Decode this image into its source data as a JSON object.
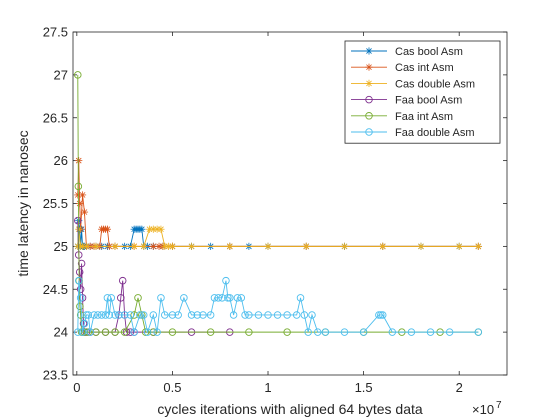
{
  "chart_data": {
    "type": "line",
    "title": "",
    "xlabel": "cycles iterations with aligned 64 bytes data",
    "ylabel": "time latency in nanosec",
    "x_exponent_label": "×10^7",
    "xlim": [
      -200000,
      22500000
    ],
    "ylim": [
      23.5,
      27.5
    ],
    "x_ticks": [
      0,
      5000000,
      10000000,
      15000000,
      20000000
    ],
    "x_tick_labels": [
      "0",
      "0.5",
      "1",
      "1.5",
      "2"
    ],
    "y_ticks": [
      23.5,
      24,
      24.5,
      25,
      25.5,
      26,
      26.5,
      27,
      27.5
    ],
    "y_tick_labels": [
      "23.5",
      "24",
      "24.5",
      "25",
      "25.5",
      "26",
      "26.5",
      "27",
      "27.5"
    ],
    "grid": false,
    "legend_position": "top-right",
    "series": [
      {
        "name": "Cas bool Asm",
        "color": "#0072BD",
        "marker": "asterisk",
        "x": [
          50000,
          100000,
          150000,
          200000,
          250000,
          300000,
          350000,
          400000,
          500000,
          700000,
          1000000,
          1300000,
          1600000,
          2000000,
          2500000,
          2800000,
          3000000,
          3100000,
          3200000,
          3300000,
          3400000,
          3500000,
          3700000,
          4000000,
          4500000,
          5000000,
          6000000,
          7000000,
          8000000,
          9000000,
          10000000,
          12000000,
          14000000,
          16000000,
          18000000,
          20000000,
          21000000
        ],
        "y": [
          25.0,
          25.3,
          25.2,
          25.0,
          25.2,
          25.0,
          25.0,
          25.0,
          25.0,
          25.0,
          25.0,
          25.0,
          25.0,
          25.0,
          25.0,
          25.0,
          25.2,
          25.2,
          25.2,
          25.2,
          25.2,
          25.0,
          25.0,
          25.0,
          25.0,
          25.0,
          25.0,
          25.0,
          25.0,
          25.0,
          25.0,
          25.0,
          25.0,
          25.0,
          25.0,
          25.0,
          25.0
        ]
      },
      {
        "name": "Cas int Asm",
        "color": "#D95319",
        "marker": "asterisk",
        "x": [
          50000,
          100000,
          150000,
          200000,
          300000,
          400000,
          500000,
          700000,
          900000,
          1200000,
          1300000,
          1400000,
          1500000,
          1600000,
          1700000,
          2000000,
          3000000,
          4000000,
          4300000,
          4500000,
          5000000,
          8000000,
          12000000,
          16000000,
          21000000
        ],
        "y": [
          25.6,
          26.0,
          25.5,
          25.2,
          25.6,
          25.4,
          25.0,
          25.0,
          25.0,
          25.0,
          25.2,
          25.2,
          25.2,
          25.2,
          25.0,
          25.0,
          25.0,
          25.0,
          25.0,
          25.0,
          25.0,
          25.0,
          25.0,
          25.0,
          25.0
        ]
      },
      {
        "name": "Cas double Asm",
        "color": "#EDB120",
        "marker": "asterisk",
        "x": [
          50000,
          100000,
          200000,
          300000,
          500000,
          1000000,
          2000000,
          3000000,
          3500000,
          3800000,
          4000000,
          4200000,
          4400000,
          4600000,
          4800000,
          5000000,
          6000000,
          8000000,
          10000000,
          12000000,
          14000000,
          16000000,
          18000000,
          20000000,
          21000000
        ],
        "y": [
          25.0,
          25.2,
          25.0,
          25.0,
          25.0,
          25.0,
          25.0,
          25.0,
          25.0,
          25.2,
          25.2,
          25.2,
          25.2,
          25.0,
          25.0,
          25.0,
          25.0,
          25.0,
          25.0,
          25.0,
          25.0,
          25.0,
          25.0,
          25.0,
          25.0
        ]
      },
      {
        "name": "Faa bool Asm",
        "color": "#7E2F8E",
        "marker": "circle",
        "x": [
          50000,
          100000,
          150000,
          200000,
          250000,
          300000,
          350000,
          400000,
          500000,
          700000,
          1000000,
          1500000,
          2000000,
          2200000,
          2300000,
          2400000,
          2500000,
          2600000,
          2800000,
          3000000,
          4000000,
          6000000,
          8000000
        ],
        "y": [
          25.3,
          24.9,
          24.7,
          24.5,
          24.8,
          24.4,
          24.1,
          24.0,
          24.0,
          24.0,
          24.0,
          24.0,
          24.0,
          24.2,
          24.4,
          24.6,
          24.2,
          24.0,
          24.0,
          24.0,
          24.0,
          24.0,
          24.0
        ]
      },
      {
        "name": "Faa int Asm",
        "color": "#77AC30",
        "marker": "circle",
        "x": [
          50000,
          80000,
          120000,
          160000,
          200000,
          250000,
          300000,
          400000,
          600000,
          1000000,
          1500000,
          2000000,
          2500000,
          3000000,
          3200000,
          3400000,
          3600000,
          4000000,
          5000000,
          7000000,
          9000000,
          11000000,
          13000000,
          15000000,
          17000000,
          19000000,
          21000000
        ],
        "y": [
          27.0,
          25.7,
          24.6,
          24.3,
          24.2,
          24.0,
          24.0,
          24.0,
          24.0,
          24.0,
          24.0,
          24.0,
          24.0,
          24.2,
          24.4,
          24.2,
          24.0,
          24.0,
          24.0,
          24.0,
          24.0,
          24.0,
          24.0,
          24.0,
          24.0,
          24.0,
          24.0
        ]
      },
      {
        "name": "Faa double Asm",
        "color": "#4DBEEE",
        "marker": "circle",
        "x": [
          50000,
          100000,
          200000,
          300000,
          400000,
          500000,
          600000,
          700000,
          900000,
          1100000,
          1300000,
          1500000,
          1600000,
          1700000,
          1800000,
          2000000,
          2200000,
          2500000,
          2800000,
          3000000,
          3300000,
          3500000,
          3700000,
          4000000,
          4200000,
          4400000,
          4600000,
          5000000,
          5300000,
          5600000,
          6000000,
          6300000,
          6600000,
          7000000,
          7200000,
          7400000,
          7600000,
          7800000,
          7900000,
          8000000,
          8200000,
          8400000,
          8600000,
          8800000,
          9000000,
          9500000,
          10000000,
          10500000,
          11000000,
          11500000,
          11700000,
          11900000,
          12100000,
          12300000,
          12600000,
          13000000,
          14000000,
          15000000,
          15800000,
          15900000,
          16000000,
          16500000,
          17500000,
          18500000,
          19500000,
          21000000
        ],
        "y": [
          24.0,
          24.6,
          24.4,
          24.0,
          24.1,
          24.2,
          24.2,
          24.0,
          24.2,
          24.2,
          24.2,
          24.2,
          24.4,
          24.2,
          24.4,
          24.2,
          24.2,
          24.2,
          24.2,
          24.0,
          24.2,
          24.2,
          24.0,
          24.2,
          24.0,
          24.4,
          24.2,
          24.2,
          24.2,
          24.4,
          24.2,
          24.2,
          24.2,
          24.2,
          24.4,
          24.4,
          24.4,
          24.6,
          24.4,
          24.4,
          24.2,
          24.4,
          24.4,
          24.2,
          24.2,
          24.2,
          24.2,
          24.2,
          24.2,
          24.2,
          24.4,
          24.2,
          24.0,
          24.2,
          24.0,
          24.0,
          24.0,
          24.0,
          24.2,
          24.2,
          24.2,
          24.0,
          24.0,
          24.0,
          24.0,
          24.0
        ]
      }
    ]
  }
}
